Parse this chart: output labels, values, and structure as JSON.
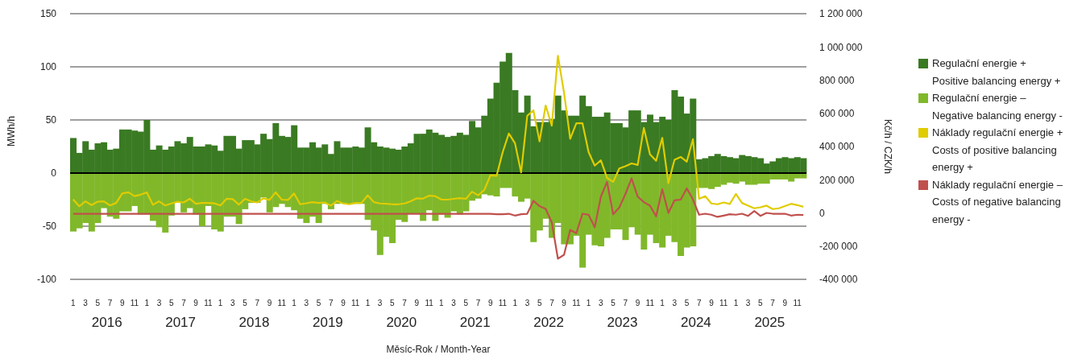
{
  "chart_data": {
    "type": "bar",
    "stacked": true,
    "grid": "y",
    "legend": "right",
    "marker": "none",
    "line_style": "solid",
    "ylabel": "MWh/h",
    "y2label": "Kč/h / CZK/h",
    "xlabel": "Měsíc-Rok / Month-Year",
    "annotations": [
      "2016",
      "2017",
      "2018",
      "2019",
      "2020",
      "2021",
      "2022",
      "2023",
      "2024",
      "2025"
    ],
    "categories": [
      "1",
      null,
      "3",
      null,
      "5",
      null,
      "7",
      null,
      "9",
      null,
      "11",
      null,
      "1",
      null,
      "3",
      null,
      "5",
      null,
      "7",
      null,
      "9",
      null,
      "11",
      null,
      "1",
      null,
      "3",
      null,
      "5",
      null,
      "7",
      null,
      "9",
      null,
      "11",
      null,
      "1",
      null,
      "3",
      null,
      "5",
      null,
      "7",
      null,
      "9",
      null,
      "11",
      null,
      "1",
      null,
      "3",
      null,
      "5",
      null,
      "7",
      null,
      "9",
      null,
      "11",
      null,
      "1",
      null,
      "3",
      null,
      "5",
      null,
      "7",
      null,
      "9",
      null,
      "11",
      null,
      "1",
      null,
      "3",
      null,
      "5",
      null,
      "7",
      null,
      "9",
      null,
      "11",
      null,
      "1",
      null,
      "3",
      null,
      "5",
      null,
      "7",
      null,
      "9",
      null,
      "11",
      null,
      "1",
      null,
      "3",
      null,
      "5",
      null,
      "7",
      null,
      "9",
      null,
      "11",
      null,
      "1",
      null,
      "3",
      null,
      "5",
      null,
      "7",
      null,
      "9",
      null,
      "11",
      null
    ],
    "ylim": [
      -100,
      150
    ],
    "yticks": [
      -100,
      -50,
      0,
      50,
      100,
      150
    ],
    "y2lim": [
      -400000,
      1200000
    ],
    "y2ticks": [
      {
        "value": -400000,
        "label": "-400 000"
      },
      {
        "value": -200000,
        "label": "-200 000"
      },
      {
        "value": 0,
        "label": "0"
      },
      {
        "value": 200000,
        "label": "200 000"
      },
      {
        "value": 400000,
        "label": "400 000"
      },
      {
        "value": 600000,
        "label": "600 000"
      },
      {
        "value": 800000,
        "label": "800 000"
      },
      {
        "value": 1000000,
        "label": "1 000 000"
      },
      {
        "value": 1200000,
        "label": "1 200 000"
      }
    ],
    "ref_lines": [
      {
        "axis": "y",
        "value": 0,
        "color": "#000000"
      }
    ],
    "series": [
      {
        "name": "Regulační energie + Positive balancing energy +",
        "color": "#3a7a23",
        "values": [
          33,
          19,
          30,
          22,
          28,
          29,
          22,
          23,
          41,
          41,
          40,
          39,
          50,
          22,
          26,
          22,
          25,
          30,
          28,
          34,
          25,
          25,
          27,
          26,
          21,
          35,
          35,
          23,
          31,
          31,
          27,
          37,
          32,
          47,
          35,
          34,
          45,
          24,
          24,
          29,
          24,
          27,
          18,
          30,
          24,
          24,
          25,
          24,
          43,
          29,
          25,
          24,
          23,
          22,
          25,
          28,
          37,
          37,
          41,
          38,
          36,
          34,
          35,
          38,
          36,
          49,
          43,
          54,
          70,
          85,
          105,
          113,
          78,
          57,
          73,
          44,
          48,
          48,
          51,
          73,
          59,
          54,
          54,
          73,
          63,
          53,
          53,
          57,
          47,
          47,
          43,
          59,
          59,
          48,
          55,
          48,
          53,
          50,
          78,
          72,
          56,
          70,
          13,
          14,
          16,
          18,
          16,
          15,
          14,
          17,
          16,
          15,
          14,
          9,
          11,
          14,
          15,
          14,
          15,
          14
        ]
      },
      {
        "name": "Regulační energie – Negative balancing energy -",
        "color": "#80b82a",
        "values": [
          -55,
          -52,
          -47,
          -55,
          -47,
          -33,
          -41,
          -43,
          -36,
          -36,
          -31,
          -39,
          -39,
          -45,
          -51,
          -56,
          -40,
          -28,
          -37,
          -33,
          -39,
          -50,
          -31,
          -53,
          -55,
          -41,
          -41,
          -48,
          -34,
          -28,
          -28,
          -23,
          -37,
          -32,
          -29,
          -32,
          -35,
          -43,
          -47,
          -41,
          -47,
          -29,
          -34,
          -29,
          -28,
          -29,
          -29,
          -29,
          -44,
          -54,
          -77,
          -60,
          -66,
          -44,
          -46,
          -38,
          -38,
          -45,
          -35,
          -45,
          -39,
          -42,
          -36,
          -39,
          -36,
          -26,
          -24,
          -20,
          -21,
          -22,
          -14,
          -14,
          -22,
          -27,
          -24,
          -65,
          -54,
          -43,
          -61,
          -47,
          -67,
          -67,
          -59,
          -89,
          -58,
          -68,
          -69,
          -61,
          -53,
          -53,
          -63,
          -51,
          -58,
          -72,
          -58,
          -66,
          -70,
          -59,
          -65,
          -78,
          -70,
          -69,
          -14,
          -14,
          -15,
          -13,
          -11,
          -9,
          -10,
          -8,
          -11,
          -11,
          -10,
          -10,
          -6,
          -6,
          -6,
          -8,
          -5,
          -5
        ]
      },
      {
        "name": "Náklady regulační energie + Costs of positive balancing energy +",
        "type": "line",
        "axis": "y2",
        "color": "#e0cc00",
        "values": [
          81000,
          40000,
          70000,
          47000,
          68000,
          70000,
          45000,
          60000,
          117000,
          124000,
          101000,
          110000,
          124000,
          49000,
          70000,
          45000,
          57000,
          67000,
          63000,
          85000,
          55000,
          60000,
          60000,
          58000,
          45000,
          85000,
          83000,
          50000,
          85000,
          70000,
          63000,
          88000,
          78000,
          124000,
          80000,
          78000,
          117000,
          52000,
          58000,
          65000,
          60000,
          63000,
          44000,
          72000,
          57000,
          52000,
          60000,
          60000,
          106000,
          65000,
          57000,
          55000,
          52000,
          52000,
          57000,
          70000,
          88000,
          86000,
          104000,
          101000,
          81000,
          80000,
          85000,
          89000,
          85000,
          128000,
          106000,
          138000,
          226000,
          223000,
          366000,
          478000,
          420000,
          244000,
          585000,
          618000,
          431000,
          647000,
          525000,
          946000,
          723000,
          447000,
          540000,
          540000,
          366000,
          285000,
          317000,
          211000,
          187000,
          268000,
          281000,
          298000,
          289000,
          512000,
          353000,
          314000,
          452000,
          179000,
          320000,
          337000,
          309000,
          444000,
          85000,
          101000,
          57000,
          52000,
          63000,
          54000,
          114000,
          60000,
          44000,
          28000,
          34000,
          44000,
          23000,
          28000,
          41000,
          55000,
          47000,
          37000
        ]
      },
      {
        "name": "Náklady regulační energie – Costs of negative balancing energy -",
        "type": "line",
        "axis": "y2",
        "color": "#c0504d",
        "values": [
          -5000,
          -5000,
          -5000,
          -5000,
          -5000,
          -5000,
          -5000,
          -5000,
          -5000,
          -5000,
          -5000,
          -5000,
          -5000,
          -5000,
          -5000,
          -5000,
          -5000,
          -5000,
          -5000,
          -5000,
          -5000,
          -5000,
          -5000,
          -5000,
          -5000,
          -5000,
          -5000,
          -5000,
          -5000,
          -5000,
          -5000,
          -5000,
          -5000,
          -5000,
          -5000,
          -5000,
          -5000,
          -5000,
          -5000,
          -5000,
          -5000,
          -5000,
          -5000,
          -5000,
          -5000,
          -5000,
          -5000,
          -5000,
          -5000,
          -5000,
          -5000,
          -5000,
          -5000,
          -5000,
          -5000,
          -5000,
          -5000,
          -5000,
          -5000,
          -5000,
          -5000,
          -5000,
          -5000,
          -5000,
          -5000,
          -5000,
          -5000,
          -5000,
          -5000,
          -8000,
          -8000,
          -5000,
          -16000,
          -8000,
          -5000,
          73000,
          41000,
          24000,
          -57000,
          -276000,
          -252000,
          -102000,
          -122000,
          -5000,
          -11000,
          -86000,
          98000,
          187000,
          -8000,
          33000,
          114000,
          208000,
          98000,
          65000,
          44000,
          -21000,
          143000,
          0,
          76000,
          80000,
          148000,
          81000,
          -11000,
          -5000,
          -11000,
          -24000,
          -16000,
          -8000,
          -11000,
          -5000,
          -18000,
          11000,
          -18000,
          0,
          -5000,
          -5000,
          -5000,
          -16000,
          -11000,
          -13000
        ]
      }
    ]
  }
}
